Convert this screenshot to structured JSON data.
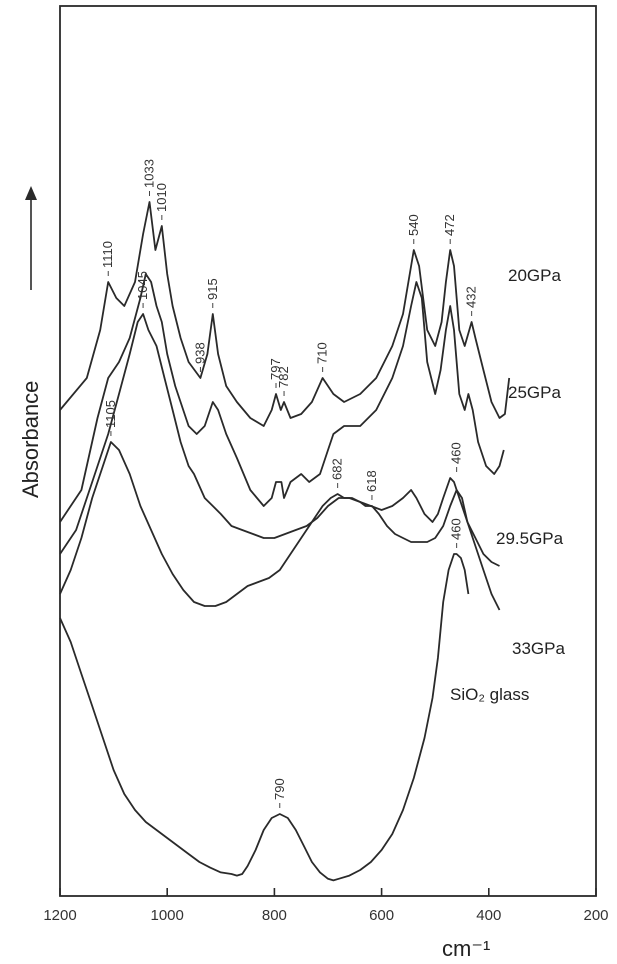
{
  "chart_data": {
    "type": "line",
    "xlabel": "cm⁻¹",
    "ylabel": "Absorbance",
    "xlim": [
      1200,
      200
    ],
    "ylim": [
      0,
      1
    ],
    "x_ticks": [
      1200,
      1000,
      800,
      600,
      400,
      200
    ],
    "x_tick_labels": [
      "1200",
      "1000",
      "800",
      "600",
      "400",
      "200"
    ],
    "grid": false,
    "series": [
      {
        "name": "20GPa",
        "points": [
          [
            1200,
            0.6
          ],
          [
            1150,
            0.64
          ],
          [
            1125,
            0.7
          ],
          [
            1110,
            0.76
          ],
          [
            1095,
            0.74
          ],
          [
            1080,
            0.73
          ],
          [
            1060,
            0.76
          ],
          [
            1045,
            0.82
          ],
          [
            1033,
            0.86
          ],
          [
            1022,
            0.8
          ],
          [
            1010,
            0.83
          ],
          [
            1000,
            0.77
          ],
          [
            990,
            0.73
          ],
          [
            975,
            0.69
          ],
          [
            960,
            0.66
          ],
          [
            938,
            0.64
          ],
          [
            925,
            0.67
          ],
          [
            915,
            0.72
          ],
          [
            905,
            0.67
          ],
          [
            890,
            0.63
          ],
          [
            870,
            0.61
          ],
          [
            845,
            0.59
          ],
          [
            820,
            0.58
          ],
          [
            805,
            0.6
          ],
          [
            797,
            0.62
          ],
          [
            788,
            0.6
          ],
          [
            782,
            0.61
          ],
          [
            770,
            0.59
          ],
          [
            750,
            0.595
          ],
          [
            730,
            0.61
          ],
          [
            710,
            0.64
          ],
          [
            690,
            0.62
          ],
          [
            670,
            0.61
          ],
          [
            640,
            0.62
          ],
          [
            610,
            0.64
          ],
          [
            580,
            0.68
          ],
          [
            560,
            0.72
          ],
          [
            545,
            0.78
          ],
          [
            540,
            0.8
          ],
          [
            530,
            0.78
          ],
          [
            515,
            0.7
          ],
          [
            500,
            0.68
          ],
          [
            488,
            0.71
          ],
          [
            480,
            0.76
          ],
          [
            472,
            0.8
          ],
          [
            465,
            0.78
          ],
          [
            455,
            0.7
          ],
          [
            445,
            0.68
          ],
          [
            432,
            0.71
          ],
          [
            425,
            0.69
          ],
          [
            410,
            0.65
          ],
          [
            395,
            0.61
          ],
          [
            380,
            0.59
          ],
          [
            370,
            0.595
          ],
          [
            362,
            0.64
          ]
        ]
      },
      {
        "name": "25GPa",
        "points": [
          [
            1200,
            0.46
          ],
          [
            1160,
            0.5
          ],
          [
            1130,
            0.59
          ],
          [
            1110,
            0.64
          ],
          [
            1090,
            0.66
          ],
          [
            1070,
            0.69
          ],
          [
            1050,
            0.74
          ],
          [
            1040,
            0.77
          ],
          [
            1030,
            0.76
          ],
          [
            1020,
            0.73
          ],
          [
            1010,
            0.71
          ],
          [
            1000,
            0.67
          ],
          [
            985,
            0.63
          ],
          [
            960,
            0.58
          ],
          [
            945,
            0.57
          ],
          [
            930,
            0.58
          ],
          [
            915,
            0.61
          ],
          [
            905,
            0.6
          ],
          [
            890,
            0.57
          ],
          [
            870,
            0.54
          ],
          [
            845,
            0.5
          ],
          [
            820,
            0.48
          ],
          [
            805,
            0.49
          ],
          [
            797,
            0.51
          ],
          [
            787,
            0.51
          ],
          [
            782,
            0.49
          ],
          [
            770,
            0.51
          ],
          [
            750,
            0.52
          ],
          [
            735,
            0.51
          ],
          [
            715,
            0.52
          ],
          [
            700,
            0.55
          ],
          [
            690,
            0.57
          ],
          [
            670,
            0.58
          ],
          [
            640,
            0.58
          ],
          [
            610,
            0.6
          ],
          [
            580,
            0.64
          ],
          [
            560,
            0.68
          ],
          [
            545,
            0.73
          ],
          [
            535,
            0.76
          ],
          [
            525,
            0.74
          ],
          [
            515,
            0.66
          ],
          [
            500,
            0.62
          ],
          [
            490,
            0.65
          ],
          [
            480,
            0.7
          ],
          [
            472,
            0.73
          ],
          [
            465,
            0.7
          ],
          [
            455,
            0.62
          ],
          [
            445,
            0.6
          ],
          [
            438,
            0.62
          ],
          [
            430,
            0.6
          ],
          [
            420,
            0.56
          ],
          [
            405,
            0.53
          ],
          [
            390,
            0.52
          ],
          [
            380,
            0.53
          ],
          [
            372,
            0.55
          ]
        ]
      },
      {
        "name": "29.5GPa",
        "points": [
          [
            1200,
            0.42
          ],
          [
            1170,
            0.45
          ],
          [
            1140,
            0.51
          ],
          [
            1110,
            0.57
          ],
          [
            1090,
            0.62
          ],
          [
            1070,
            0.67
          ],
          [
            1055,
            0.71
          ],
          [
            1045,
            0.72
          ],
          [
            1035,
            0.7
          ],
          [
            1020,
            0.68
          ],
          [
            1005,
            0.64
          ],
          [
            990,
            0.6
          ],
          [
            975,
            0.56
          ],
          [
            960,
            0.53
          ],
          [
            950,
            0.52
          ],
          [
            930,
            0.49
          ],
          [
            915,
            0.48
          ],
          [
            900,
            0.47
          ],
          [
            880,
            0.455
          ],
          [
            860,
            0.45
          ],
          [
            840,
            0.445
          ],
          [
            820,
            0.44
          ],
          [
            800,
            0.44
          ],
          [
            780,
            0.445
          ],
          [
            760,
            0.45
          ],
          [
            740,
            0.455
          ],
          [
            720,
            0.465
          ],
          [
            700,
            0.48
          ],
          [
            680,
            0.49
          ],
          [
            660,
            0.49
          ],
          [
            640,
            0.485
          ],
          [
            620,
            0.48
          ],
          [
            600,
            0.475
          ],
          [
            580,
            0.48
          ],
          [
            560,
            0.49
          ],
          [
            545,
            0.5
          ],
          [
            535,
            0.49
          ],
          [
            520,
            0.47
          ],
          [
            505,
            0.46
          ],
          [
            495,
            0.47
          ],
          [
            485,
            0.49
          ],
          [
            472,
            0.515
          ],
          [
            465,
            0.51
          ],
          [
            455,
            0.49
          ],
          [
            440,
            0.46
          ],
          [
            425,
            0.44
          ],
          [
            410,
            0.42
          ],
          [
            395,
            0.41
          ],
          [
            380,
            0.405
          ]
        ]
      },
      {
        "name": "33GPa",
        "points": [
          [
            1200,
            0.37
          ],
          [
            1180,
            0.4
          ],
          [
            1160,
            0.44
          ],
          [
            1140,
            0.49
          ],
          [
            1120,
            0.53
          ],
          [
            1105,
            0.56
          ],
          [
            1090,
            0.55
          ],
          [
            1070,
            0.52
          ],
          [
            1050,
            0.48
          ],
          [
            1030,
            0.45
          ],
          [
            1010,
            0.42
          ],
          [
            990,
            0.395
          ],
          [
            970,
            0.375
          ],
          [
            950,
            0.36
          ],
          [
            930,
            0.355
          ],
          [
            910,
            0.355
          ],
          [
            890,
            0.36
          ],
          [
            870,
            0.37
          ],
          [
            850,
            0.38
          ],
          [
            830,
            0.385
          ],
          [
            810,
            0.39
          ],
          [
            790,
            0.4
          ],
          [
            770,
            0.42
          ],
          [
            750,
            0.44
          ],
          [
            730,
            0.46
          ],
          [
            710,
            0.48
          ],
          [
            695,
            0.49
          ],
          [
            682,
            0.495
          ],
          [
            670,
            0.49
          ],
          [
            655,
            0.49
          ],
          [
            640,
            0.485
          ],
          [
            630,
            0.48
          ],
          [
            618,
            0.48
          ],
          [
            605,
            0.47
          ],
          [
            590,
            0.455
          ],
          [
            575,
            0.445
          ],
          [
            560,
            0.44
          ],
          [
            545,
            0.435
          ],
          [
            530,
            0.435
          ],
          [
            515,
            0.435
          ],
          [
            500,
            0.44
          ],
          [
            485,
            0.455
          ],
          [
            472,
            0.48
          ],
          [
            460,
            0.5
          ],
          [
            450,
            0.49
          ],
          [
            440,
            0.46
          ],
          [
            425,
            0.43
          ],
          [
            410,
            0.4
          ],
          [
            395,
            0.37
          ],
          [
            380,
            0.35
          ]
        ]
      },
      {
        "name": "SiO₂ glass",
        "points": [
          [
            1200,
            0.34
          ],
          [
            1180,
            0.31
          ],
          [
            1160,
            0.27
          ],
          [
            1140,
            0.23
          ],
          [
            1120,
            0.19
          ],
          [
            1100,
            0.15
          ],
          [
            1080,
            0.12
          ],
          [
            1060,
            0.1
          ],
          [
            1040,
            0.085
          ],
          [
            1020,
            0.075
          ],
          [
            1000,
            0.065
          ],
          [
            980,
            0.055
          ],
          [
            960,
            0.045
          ],
          [
            940,
            0.035
          ],
          [
            920,
            0.028
          ],
          [
            900,
            0.022
          ],
          [
            880,
            0.02
          ],
          [
            870,
            0.018
          ],
          [
            860,
            0.02
          ],
          [
            850,
            0.03
          ],
          [
            835,
            0.05
          ],
          [
            820,
            0.075
          ],
          [
            805,
            0.09
          ],
          [
            790,
            0.095
          ],
          [
            775,
            0.09
          ],
          [
            760,
            0.075
          ],
          [
            745,
            0.055
          ],
          [
            730,
            0.035
          ],
          [
            715,
            0.022
          ],
          [
            700,
            0.014
          ],
          [
            690,
            0.012
          ],
          [
            680,
            0.014
          ],
          [
            660,
            0.018
          ],
          [
            640,
            0.025
          ],
          [
            620,
            0.035
          ],
          [
            600,
            0.05
          ],
          [
            580,
            0.07
          ],
          [
            560,
            0.1
          ],
          [
            540,
            0.14
          ],
          [
            520,
            0.19
          ],
          [
            505,
            0.24
          ],
          [
            495,
            0.29
          ],
          [
            485,
            0.36
          ],
          [
            475,
            0.4
          ],
          [
            465,
            0.42
          ],
          [
            460,
            0.42
          ],
          [
            452,
            0.415
          ],
          [
            445,
            0.4
          ],
          [
            438,
            0.37
          ]
        ]
      }
    ],
    "peak_labels": [
      {
        "text": "1110",
        "x": 1110,
        "y": 0.76
      },
      {
        "text": "1033",
        "x": 1033,
        "y": 0.86
      },
      {
        "text": "1010",
        "x": 1010,
        "y": 0.83
      },
      {
        "text": "938",
        "x": 938,
        "y": 0.64
      },
      {
        "text": "915",
        "x": 915,
        "y": 0.72
      },
      {
        "text": "797",
        "x": 797,
        "y": 0.62
      },
      {
        "text": "782",
        "x": 782,
        "y": 0.61
      },
      {
        "text": "710",
        "x": 710,
        "y": 0.64
      },
      {
        "text": "540",
        "x": 540,
        "y": 0.8
      },
      {
        "text": "472",
        "x": 472,
        "y": 0.8
      },
      {
        "text": "432",
        "x": 432,
        "y": 0.71
      },
      {
        "text": "1045",
        "x": 1045,
        "y": 0.72
      },
      {
        "text": "460",
        "x": 460,
        "y": 0.515
      },
      {
        "text": "1105",
        "x": 1105,
        "y": 0.56
      },
      {
        "text": "682",
        "x": 682,
        "y": 0.495
      },
      {
        "text": "618",
        "x": 618,
        "y": 0.48
      },
      {
        "text": "460",
        "x": 460,
        "y": 0.42
      },
      {
        "text": "790",
        "x": 790,
        "y": 0.095
      }
    ]
  }
}
